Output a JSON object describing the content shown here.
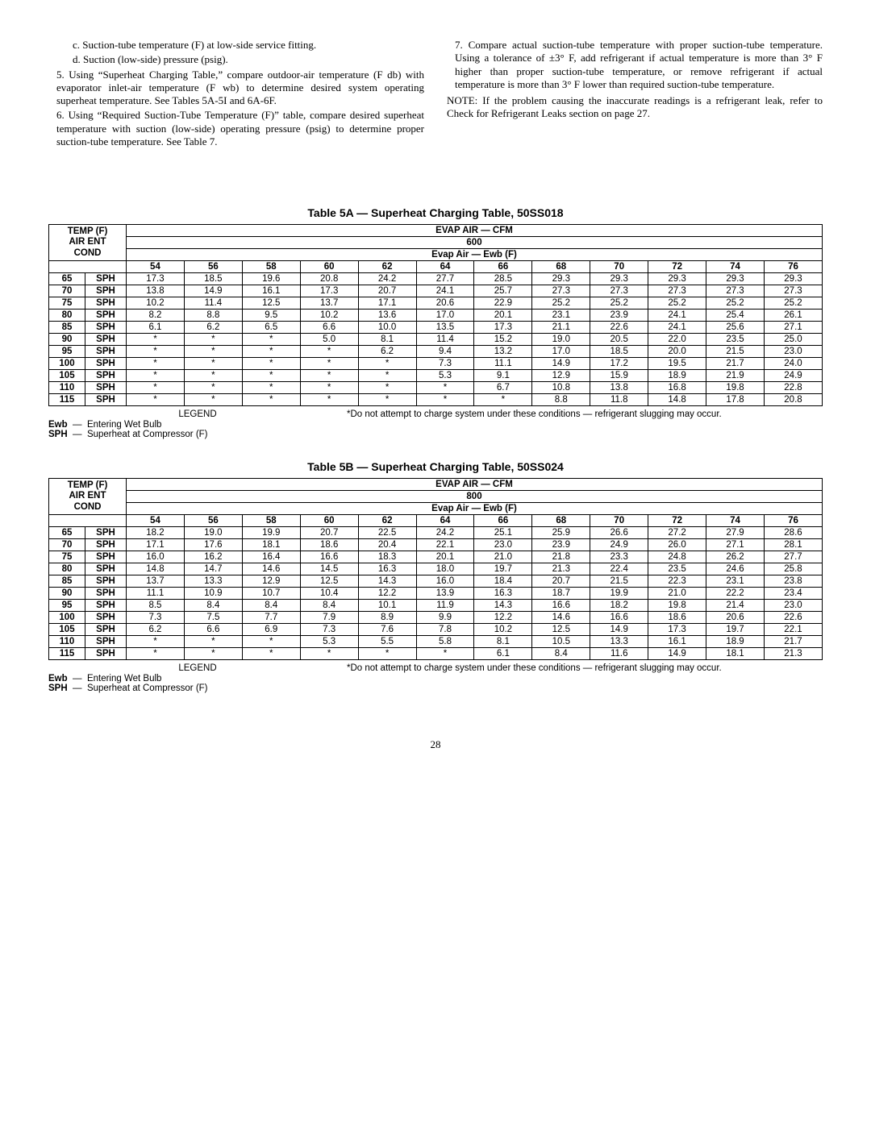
{
  "text": {
    "c": "c. Suction-tube temperature (F) at low-side service fitting.",
    "d": "d. Suction (low-side) pressure (psig).",
    "p5": "5. Using “Superheat Charging Table,” compare outdoor-air temperature (F db) with evaporator inlet-air temperature (F wb) to determine desired system operating superheat temperature. See Tables 5A-5I and 6A-6F.",
    "p6": "6. Using “Required Suction-Tube Temperature (F)” table, compare desired superheat temperature with suction (low-side) operating pressure (psig) to determine proper suction-tube temperature. See Table 7.",
    "p7": "7. Compare actual suction-tube temperature with proper suction-tube temperature. Using a tolerance of ±3° F, add refrigerant if actual temperature is more than 3° F higher than proper suction-tube temperature, or remove refrigerant if actual temperature is more than 3° F lower than required suction-tube temperature.",
    "note": "NOTE: If the problem causing the inaccurate readings is a refrigerant leak, refer to Check for Refrigerant Leaks section on page 27."
  },
  "table5A": {
    "title": "Table 5A — Superheat Charging Table, 50SS018",
    "header": {
      "temp": "TEMP (F)\nAIR ENT\nCOND",
      "evap_cfm": "EVAP AIR — CFM",
      "cfm_value": "600",
      "ewb": "Evap Air — Ewb (F)"
    },
    "ewb_cols": [
      "54",
      "56",
      "58",
      "60",
      "62",
      "64",
      "66",
      "68",
      "70",
      "72",
      "74",
      "76"
    ],
    "rows": [
      {
        "t": "65",
        "v": [
          "17.3",
          "18.5",
          "19.6",
          "20.8",
          "24.2",
          "27.7",
          "28.5",
          "29.3",
          "29.3",
          "29.3",
          "29.3",
          "29.3"
        ]
      },
      {
        "t": "70",
        "v": [
          "13.8",
          "14.9",
          "16.1",
          "17.3",
          "20.7",
          "24.1",
          "25.7",
          "27.3",
          "27.3",
          "27.3",
          "27.3",
          "27.3"
        ]
      },
      {
        "t": "75",
        "v": [
          "10.2",
          "11.4",
          "12.5",
          "13.7",
          "17.1",
          "20.6",
          "22.9",
          "25.2",
          "25.2",
          "25.2",
          "25.2",
          "25.2"
        ]
      },
      {
        "t": "80",
        "v": [
          "8.2",
          "8.8",
          "9.5",
          "10.2",
          "13.6",
          "17.0",
          "20.1",
          "23.1",
          "23.9",
          "24.1",
          "25.4",
          "26.1"
        ]
      },
      {
        "t": "85",
        "v": [
          "6.1",
          "6.2",
          "6.5",
          "6.6",
          "10.0",
          "13.5",
          "17.3",
          "21.1",
          "22.6",
          "24.1",
          "25.6",
          "27.1"
        ]
      },
      {
        "t": "90",
        "v": [
          "*",
          "*",
          "*",
          "5.0",
          "8.1",
          "11.4",
          "15.2",
          "19.0",
          "20.5",
          "22.0",
          "23.5",
          "25.0"
        ]
      },
      {
        "t": "95",
        "v": [
          "*",
          "*",
          "*",
          "*",
          "6.2",
          "9.4",
          "13.2",
          "17.0",
          "18.5",
          "20.0",
          "21.5",
          "23.0"
        ]
      },
      {
        "t": "100",
        "v": [
          "*",
          "*",
          "*",
          "*",
          "*",
          "7.3",
          "11.1",
          "14.9",
          "17.2",
          "19.5",
          "21.7",
          "24.0"
        ]
      },
      {
        "t": "105",
        "v": [
          "*",
          "*",
          "*",
          "*",
          "*",
          "5.3",
          "9.1",
          "12.9",
          "15.9",
          "18.9",
          "21.9",
          "24.9"
        ]
      },
      {
        "t": "110",
        "v": [
          "*",
          "*",
          "*",
          "*",
          "*",
          "*",
          "6.7",
          "10.8",
          "13.8",
          "16.8",
          "19.8",
          "22.8"
        ]
      },
      {
        "t": "115",
        "v": [
          "*",
          "*",
          "*",
          "*",
          "*",
          "*",
          "*",
          "8.8",
          "11.8",
          "14.8",
          "17.8",
          "20.8"
        ]
      }
    ]
  },
  "table5B": {
    "title": "Table 5B — Superheat Charging Table, 50SS024",
    "header": {
      "temp": "TEMP (F)\nAIR ENT\nCOND",
      "evap_cfm": "EVAP AIR — CFM",
      "cfm_value": "800",
      "ewb": "Evap Air — Ewb (F)"
    },
    "ewb_cols": [
      "54",
      "56",
      "58",
      "60",
      "62",
      "64",
      "66",
      "68",
      "70",
      "72",
      "74",
      "76"
    ],
    "rows": [
      {
        "t": "65",
        "v": [
          "18.2",
          "19.0",
          "19.9",
          "20.7",
          "22.5",
          "24.2",
          "25.1",
          "25.9",
          "26.6",
          "27.2",
          "27.9",
          "28.6"
        ]
      },
      {
        "t": "70",
        "v": [
          "17.1",
          "17.6",
          "18.1",
          "18.6",
          "20.4",
          "22.1",
          "23.0",
          "23.9",
          "24.9",
          "26.0",
          "27.1",
          "28.1"
        ]
      },
      {
        "t": "75",
        "v": [
          "16.0",
          "16.2",
          "16.4",
          "16.6",
          "18.3",
          "20.1",
          "21.0",
          "21.8",
          "23.3",
          "24.8",
          "26.2",
          "27.7"
        ]
      },
      {
        "t": "80",
        "v": [
          "14.8",
          "14.7",
          "14.6",
          "14.5",
          "16.3",
          "18.0",
          "19.7",
          "21.3",
          "22.4",
          "23.5",
          "24.6",
          "25.8"
        ]
      },
      {
        "t": "85",
        "v": [
          "13.7",
          "13.3",
          "12.9",
          "12.5",
          "14.3",
          "16.0",
          "18.4",
          "20.7",
          "21.5",
          "22.3",
          "23.1",
          "23.8"
        ]
      },
      {
        "t": "90",
        "v": [
          "11.1",
          "10.9",
          "10.7",
          "10.4",
          "12.2",
          "13.9",
          "16.3",
          "18.7",
          "19.9",
          "21.0",
          "22.2",
          "23.4"
        ]
      },
      {
        "t": "95",
        "v": [
          "8.5",
          "8.4",
          "8.4",
          "8.4",
          "10.1",
          "11.9",
          "14.3",
          "16.6",
          "18.2",
          "19.8",
          "21.4",
          "23.0"
        ]
      },
      {
        "t": "100",
        "v": [
          "7.3",
          "7.5",
          "7.7",
          "7.9",
          "8.9",
          "9.9",
          "12.2",
          "14.6",
          "16.6",
          "18.6",
          "20.6",
          "22.6"
        ]
      },
      {
        "t": "105",
        "v": [
          "6.2",
          "6.6",
          "6.9",
          "7.3",
          "7.6",
          "7.8",
          "10.2",
          "12.5",
          "14.9",
          "17.3",
          "19.7",
          "22.1"
        ]
      },
      {
        "t": "110",
        "v": [
          "*",
          "*",
          "*",
          "5.3",
          "5.5",
          "5.8",
          "8.1",
          "10.5",
          "13.3",
          "16.1",
          "18.9",
          "21.7"
        ]
      },
      {
        "t": "115",
        "v": [
          "*",
          "*",
          "*",
          "*",
          "*",
          "*",
          "6.1",
          "8.4",
          "11.6",
          "14.9",
          "18.1",
          "21.3"
        ]
      }
    ]
  },
  "legend": {
    "title": "LEGEND",
    "ewb_label": "Ewb",
    "ewb_def": "Entering Wet Bulb",
    "sph_label": "SPH",
    "sph_def": "Superheat at Compressor (F)",
    "footnote": "*Do not attempt to charge system under these conditions — refrigerant slugging may occur."
  },
  "sph": "SPH",
  "pagenum": "28"
}
